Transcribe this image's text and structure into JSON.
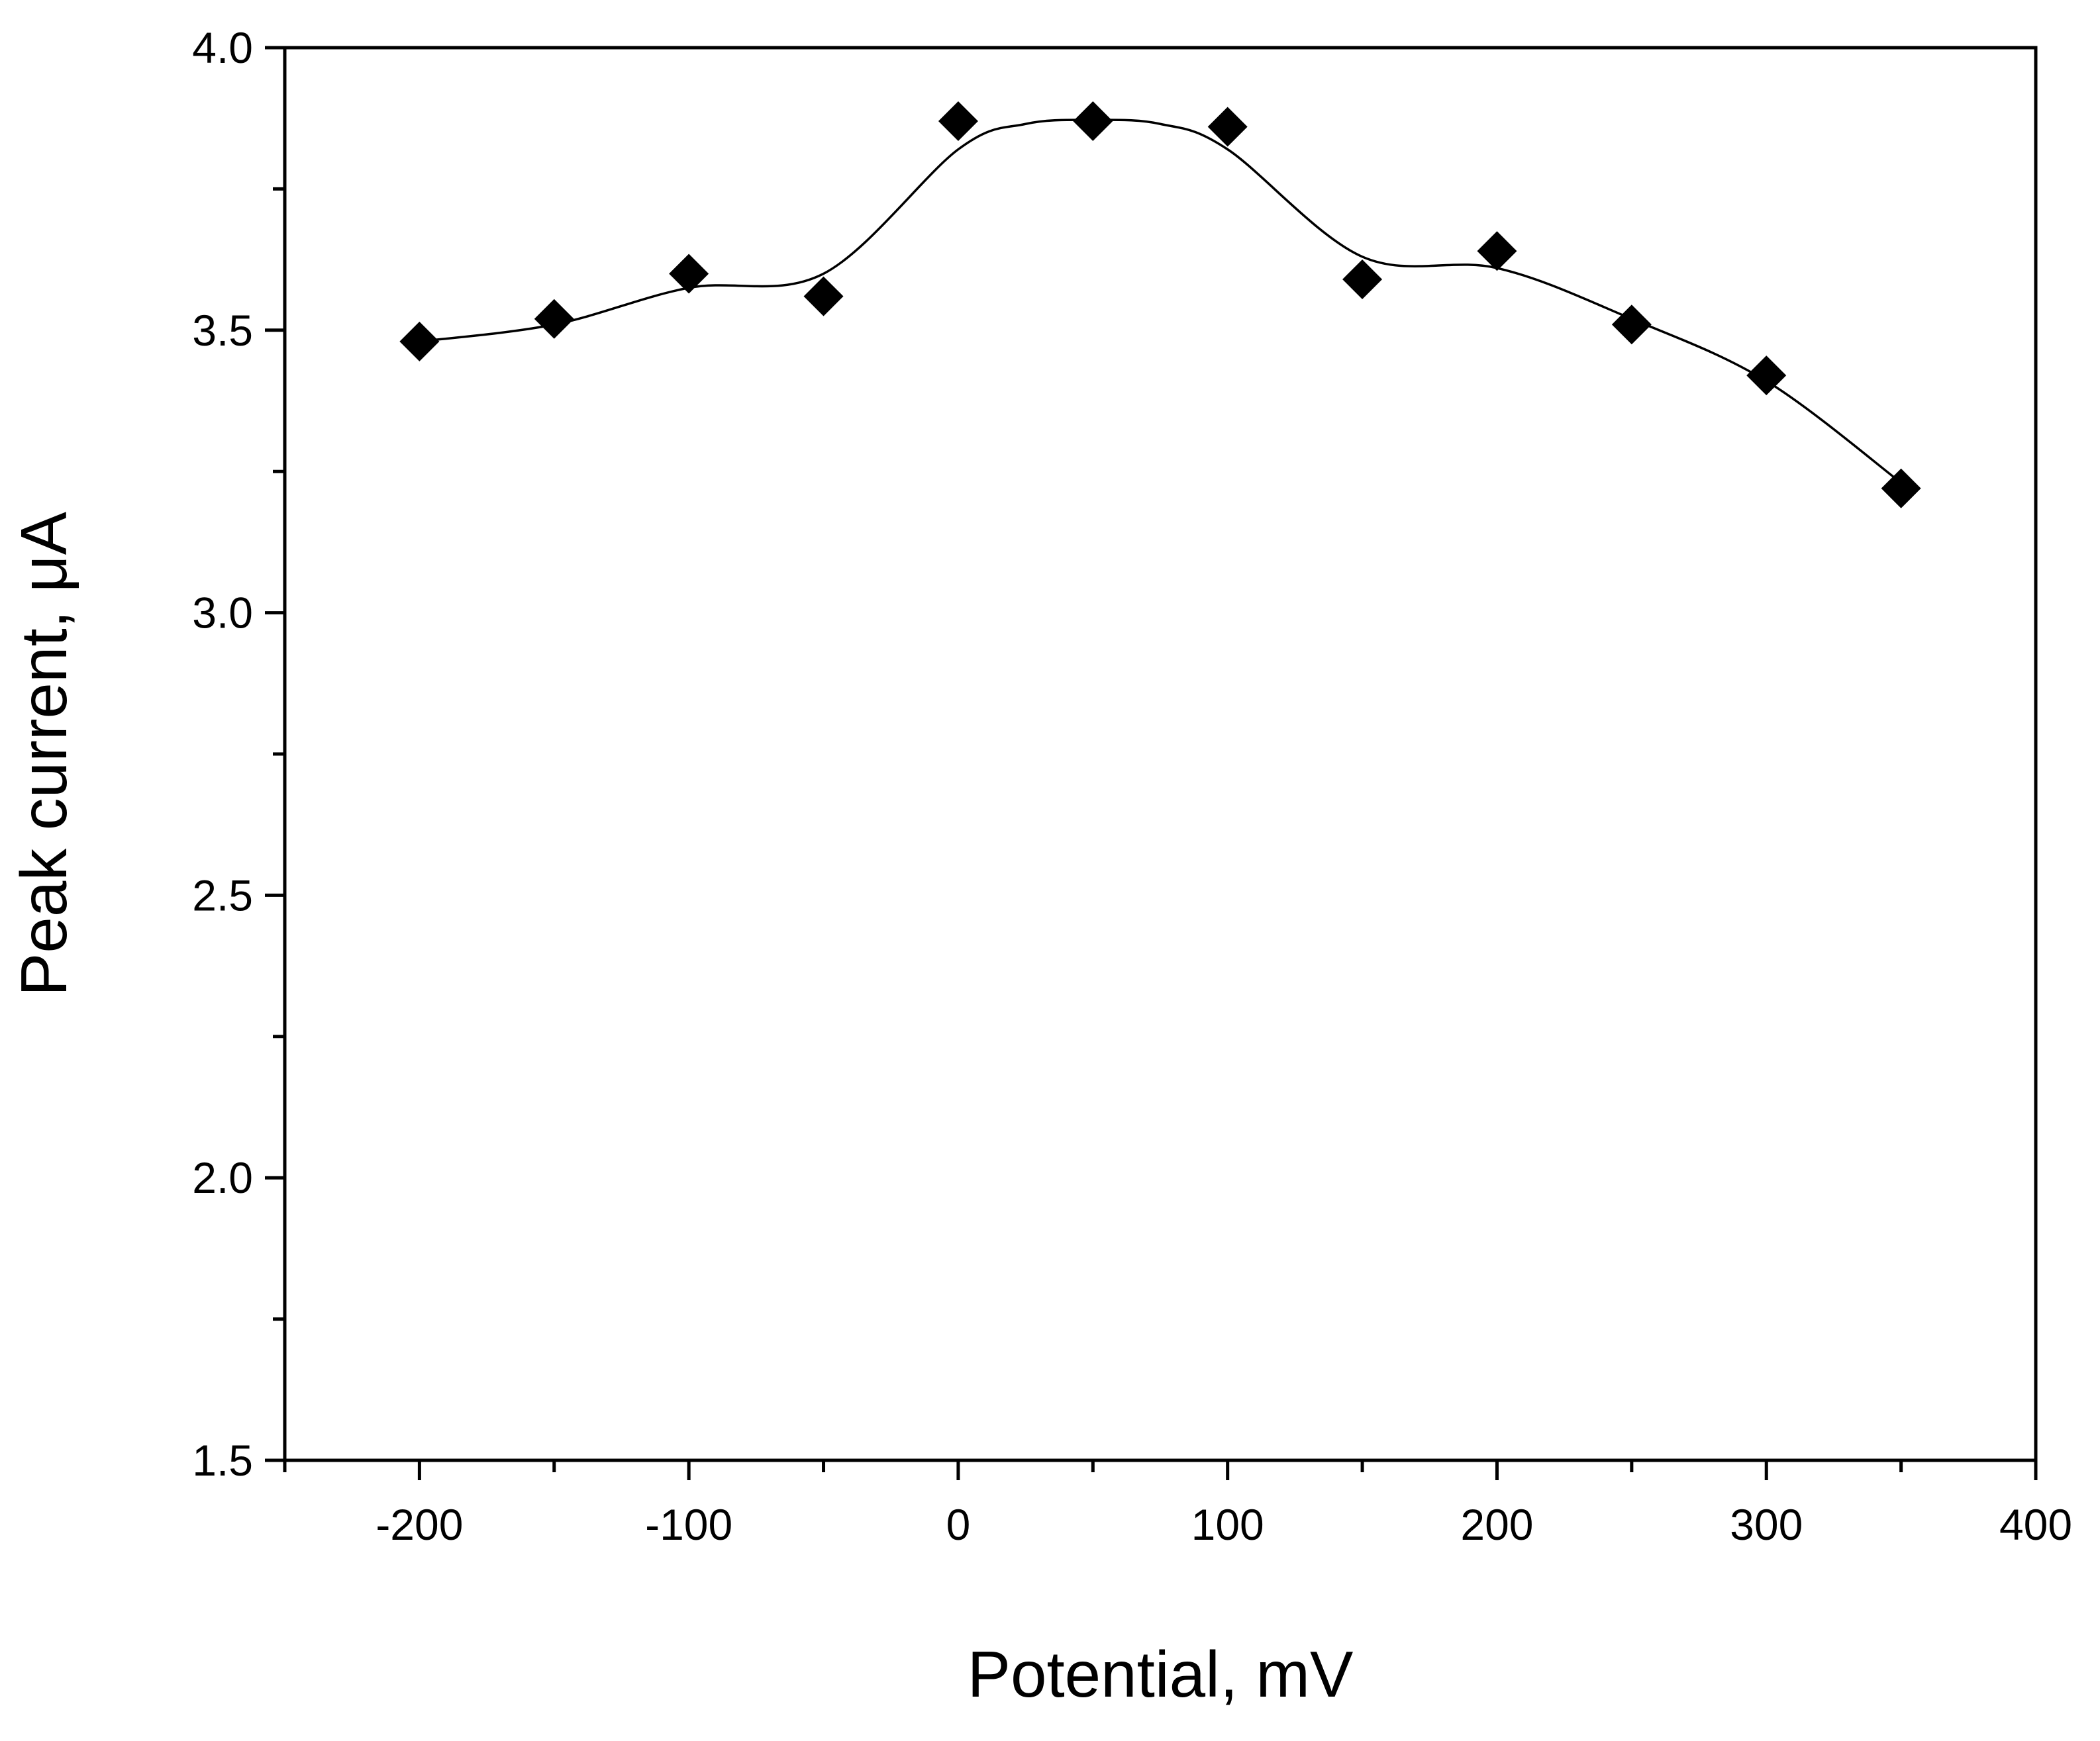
{
  "chart_data": {
    "type": "scatter",
    "title": "",
    "xlabel": "Potential, mV",
    "ylabel": "Peak current, μA",
    "xlim": [
      -250,
      400
    ],
    "ylim": [
      1.5,
      4.0
    ],
    "x_ticks": [
      -200,
      -100,
      0,
      100,
      200,
      300,
      400
    ],
    "x_tick_labels": [
      "-200",
      "-100",
      "0",
      "100",
      "200",
      "300",
      "400"
    ],
    "x_minor_ticks": [
      -250,
      -150,
      -50,
      50,
      150,
      250,
      350
    ],
    "y_ticks": [
      1.5,
      2.0,
      2.5,
      3.0,
      3.5,
      4.0
    ],
    "y_tick_labels": [
      "1.5",
      "2.0",
      "2.5",
      "3.0",
      "3.5",
      "4.0"
    ],
    "y_minor_ticks": [
      1.75,
      2.25,
      2.75,
      3.25,
      3.75
    ],
    "grid": false,
    "marker": "diamond",
    "color": "#000000",
    "series": [
      {
        "name": "Peak current",
        "x": [
          -200,
          -150,
          -100,
          -50,
          0,
          50,
          100,
          150,
          200,
          250,
          300,
          350
        ],
        "y": [
          3.48,
          3.52,
          3.6,
          3.56,
          3.87,
          3.87,
          3.86,
          3.59,
          3.64,
          3.51,
          3.42,
          3.22
        ]
      }
    ],
    "fit_curve": {
      "name": "Smooth fit",
      "x": [
        -200,
        -150,
        -100,
        -50,
        0,
        25,
        50,
        75,
        100,
        150,
        200,
        250,
        300,
        350
      ],
      "y": [
        3.48,
        3.51,
        3.575,
        3.6,
        3.82,
        3.865,
        3.872,
        3.865,
        3.82,
        3.63,
        3.61,
        3.52,
        3.41,
        3.23
      ]
    }
  }
}
